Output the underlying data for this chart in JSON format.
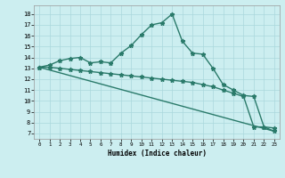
{
  "line1_x": [
    0,
    1,
    2,
    3,
    4,
    5,
    6,
    7,
    8,
    9,
    10,
    11,
    12,
    13,
    14,
    15,
    16,
    17,
    18,
    19,
    20,
    21,
    22,
    23
  ],
  "line1_y": [
    13.1,
    13.3,
    13.7,
    13.9,
    14.0,
    13.5,
    13.6,
    13.5,
    14.4,
    15.1,
    16.1,
    17.0,
    17.2,
    18.0,
    15.5,
    14.4,
    14.3,
    13.0,
    11.5,
    11.0,
    10.5,
    10.4,
    7.6,
    7.5
  ],
  "line2_x": [
    0,
    1,
    2,
    3,
    4,
    5,
    6,
    7,
    8,
    9,
    10,
    11,
    12,
    13,
    14,
    15,
    16,
    17,
    18,
    19,
    20,
    21,
    22,
    23
  ],
  "line2_y": [
    13.1,
    13.1,
    13.0,
    12.9,
    12.8,
    12.7,
    12.6,
    12.5,
    12.4,
    12.3,
    12.2,
    12.1,
    12.0,
    11.9,
    11.8,
    11.7,
    11.5,
    11.3,
    11.0,
    10.7,
    10.4,
    7.6,
    7.6,
    7.2
  ],
  "line_color": "#2a7a6a",
  "bg_color": "#cceef0",
  "grid_color": "#aad8dc",
  "xlabel": "Humidex (Indice chaleur)",
  "xlim": [
    -0.5,
    23.5
  ],
  "ylim": [
    6.5,
    18.8
  ],
  "yticks": [
    7,
    8,
    9,
    10,
    11,
    12,
    13,
    14,
    15,
    16,
    17,
    18
  ],
  "xticks": [
    0,
    1,
    2,
    3,
    4,
    5,
    6,
    7,
    8,
    9,
    10,
    11,
    12,
    13,
    14,
    15,
    16,
    17,
    18,
    19,
    20,
    21,
    22,
    23
  ],
  "marker": "*",
  "markersize": 3.5,
  "linewidth": 1.0
}
